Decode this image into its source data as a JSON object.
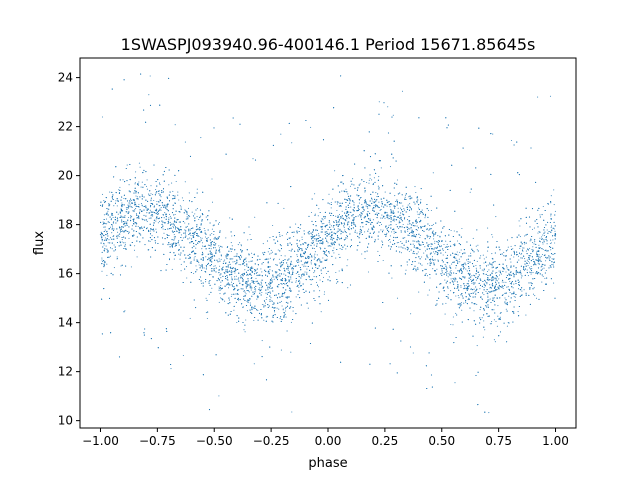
{
  "chart_data": {
    "type": "scatter",
    "title": "1SWASPJ093940.96-400146.1 Period 15671.85645s",
    "xlabel": "phase",
    "ylabel": "flux",
    "xlim": [
      -1.09,
      1.09
    ],
    "ylim": [
      9.7,
      24.8
    ],
    "x_ticks": [
      -1.0,
      -0.75,
      -0.5,
      -0.25,
      0.0,
      0.25,
      0.5,
      0.75,
      1.0
    ],
    "x_tick_labels": [
      "−1.00",
      "−0.75",
      "−0.50",
      "−0.25",
      "0.00",
      "0.25",
      "0.50",
      "0.75",
      "1.00"
    ],
    "y_ticks": [
      10,
      12,
      14,
      16,
      18,
      20,
      22,
      24
    ],
    "y_tick_labels": [
      "10",
      "12",
      "14",
      "16",
      "18",
      "20",
      "22",
      "24"
    ],
    "grid": false,
    "legend": "none",
    "point_color": "#1f77b4",
    "series": [
      {
        "points_description_free": true,
        "sampled_model": {
          "mean": 17.0,
          "amplitude": 1.5,
          "max_phase": [
            -0.8,
            0.2
          ],
          "min_phase": [
            -0.3,
            0.7
          ],
          "scatter_sd": 0.85
        },
        "points": [
          [
            -1.0,
            17.6
          ],
          [
            -0.95,
            18.0
          ],
          [
            -0.9,
            18.3
          ],
          [
            -0.85,
            18.6
          ],
          [
            -0.8,
            18.7
          ],
          [
            -0.75,
            18.5
          ],
          [
            -0.7,
            18.2
          ],
          [
            -0.65,
            17.8
          ],
          [
            -0.6,
            17.3
          ],
          [
            -0.55,
            16.8
          ],
          [
            -0.5,
            16.2
          ],
          [
            -0.45,
            15.8
          ],
          [
            -0.4,
            15.5
          ],
          [
            -0.35,
            15.3
          ],
          [
            -0.3,
            15.2
          ],
          [
            -0.25,
            15.4
          ],
          [
            -0.2,
            15.8
          ],
          [
            -0.15,
            16.3
          ],
          [
            -0.1,
            16.9
          ],
          [
            -0.05,
            17.4
          ],
          [
            0.0,
            17.8
          ],
          [
            0.05,
            18.2
          ],
          [
            0.1,
            18.5
          ],
          [
            0.15,
            18.7
          ],
          [
            0.2,
            18.7
          ],
          [
            0.25,
            18.5
          ],
          [
            0.3,
            18.2
          ],
          [
            0.35,
            17.8
          ],
          [
            0.4,
            17.3
          ],
          [
            0.45,
            16.8
          ],
          [
            0.5,
            16.2
          ],
          [
            0.55,
            15.8
          ],
          [
            0.6,
            15.5
          ],
          [
            0.65,
            15.3
          ],
          [
            0.7,
            15.2
          ],
          [
            0.75,
            15.4
          ],
          [
            0.8,
            15.8
          ],
          [
            0.85,
            16.3
          ],
          [
            0.9,
            16.9
          ],
          [
            0.95,
            17.3
          ],
          [
            1.0,
            17.6
          ]
        ]
      }
    ]
  }
}
